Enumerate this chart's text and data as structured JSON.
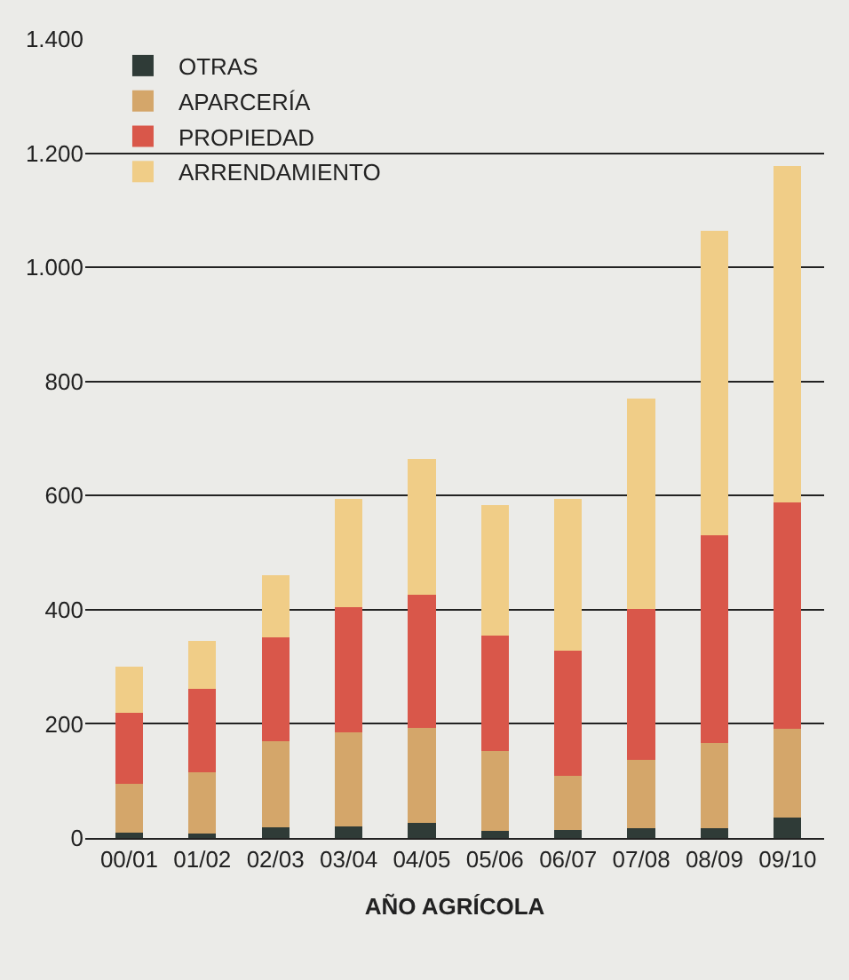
{
  "chart_data": {
    "type": "bar",
    "stacked": true,
    "xlabel": "AÑO AGRÍCOLA",
    "categories": [
      "00/01",
      "01/02",
      "02/03",
      "03/04",
      "04/05",
      "05/06",
      "06/07",
      "07/08",
      "08/09",
      "09/10"
    ],
    "series": [
      {
        "name": "OTRAS",
        "color": "#2f3b37",
        "values": [
          10,
          8,
          18,
          20,
          27,
          12,
          14,
          17,
          17,
          36
        ]
      },
      {
        "name": "APARCERÍA",
        "color": "#d4a66a",
        "values": [
          85,
          107,
          152,
          165,
          166,
          140,
          95,
          120,
          150,
          156
        ]
      },
      {
        "name": "PROPIEDAD",
        "color": "#d9574a",
        "values": [
          125,
          146,
          181,
          220,
          233,
          202,
          220,
          265,
          363,
          396
        ]
      },
      {
        "name": "ARRENDAMIENTO",
        "color": "#f0cd87",
        "values": [
          80,
          84,
          110,
          190,
          239,
          230,
          266,
          368,
          534,
          590
        ]
      }
    ],
    "ylim": [
      0,
      1400
    ],
    "yticks": [
      0,
      200,
      400,
      600,
      800,
      {
        "value": 1000,
        "label": "1.000"
      },
      {
        "value": 1200,
        "label": "1.200"
      },
      {
        "value": 1400,
        "label": "1.400"
      }
    ],
    "grid": "y",
    "legend": "top left"
  }
}
